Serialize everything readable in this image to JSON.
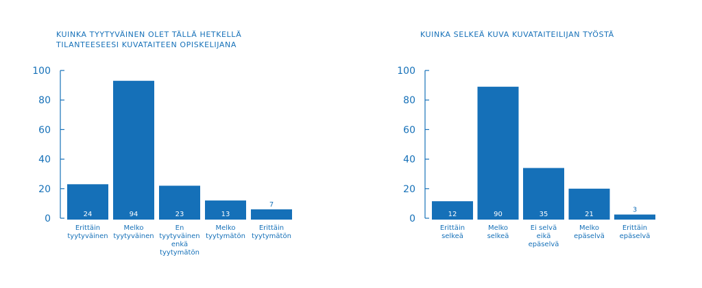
{
  "chart_data": [
    {
      "type": "bar",
      "title": "KUINKA TYYTYVÄINEN OLET TÄLLÄ HETKELLÄ TILANTEESEESI KUVATAITEEN OPISKELIJANA",
      "title_lines": [
        "KUINKA TYYTYVÄINEN OLET TÄLLÄ HETKELLÄ",
        "TILANTEESEESI KUVATAITEEN OPISKELIJANA"
      ],
      "categories": [
        [
          "Erittäin",
          "tyytyväinen"
        ],
        [
          "Melko",
          "tyytyväinen"
        ],
        [
          "En",
          "tyytyväinen",
          "enkä",
          "tyytymätön"
        ],
        [
          "Melko",
          "tyytymätön"
        ],
        [
          "Erittäin",
          "tyytymätön"
        ]
      ],
      "values": [
        24,
        94,
        23,
        13,
        7
      ],
      "data_labels": [
        "24",
        "94",
        "23",
        "13",
        "7"
      ],
      "bar_values": [
        23,
        93,
        22,
        12,
        6
      ],
      "ylim": [
        0,
        100
      ],
      "yticks": [
        0,
        20,
        40,
        60,
        80,
        100
      ],
      "color": "#1570b8"
    },
    {
      "type": "bar",
      "title": "KUINKA SELKEÄ KUVA KUVATAITEILIJAN TYÖSTÄ",
      "title_lines": [
        "KUINKA SELKEÄ KUVA KUVATAITEILIJAN TYÖSTÄ"
      ],
      "categories": [
        [
          "Erittäin",
          "selkeä"
        ],
        [
          "Melko",
          "selkeä"
        ],
        [
          "Ei selvä",
          "eikä",
          "epäselvä"
        ],
        [
          "Melko",
          "epäselvä"
        ],
        [
          "Erittäin",
          "epäselvä"
        ]
      ],
      "values": [
        12,
        90,
        35,
        21,
        3
      ],
      "data_labels": [
        "12",
        "90",
        "35",
        "21",
        "3"
      ],
      "bar_values": [
        11.5,
        89,
        34,
        20,
        2.5
      ],
      "ylim": [
        0,
        100
      ],
      "yticks": [
        0,
        20,
        40,
        60,
        80,
        100
      ],
      "color": "#1570b8"
    }
  ]
}
